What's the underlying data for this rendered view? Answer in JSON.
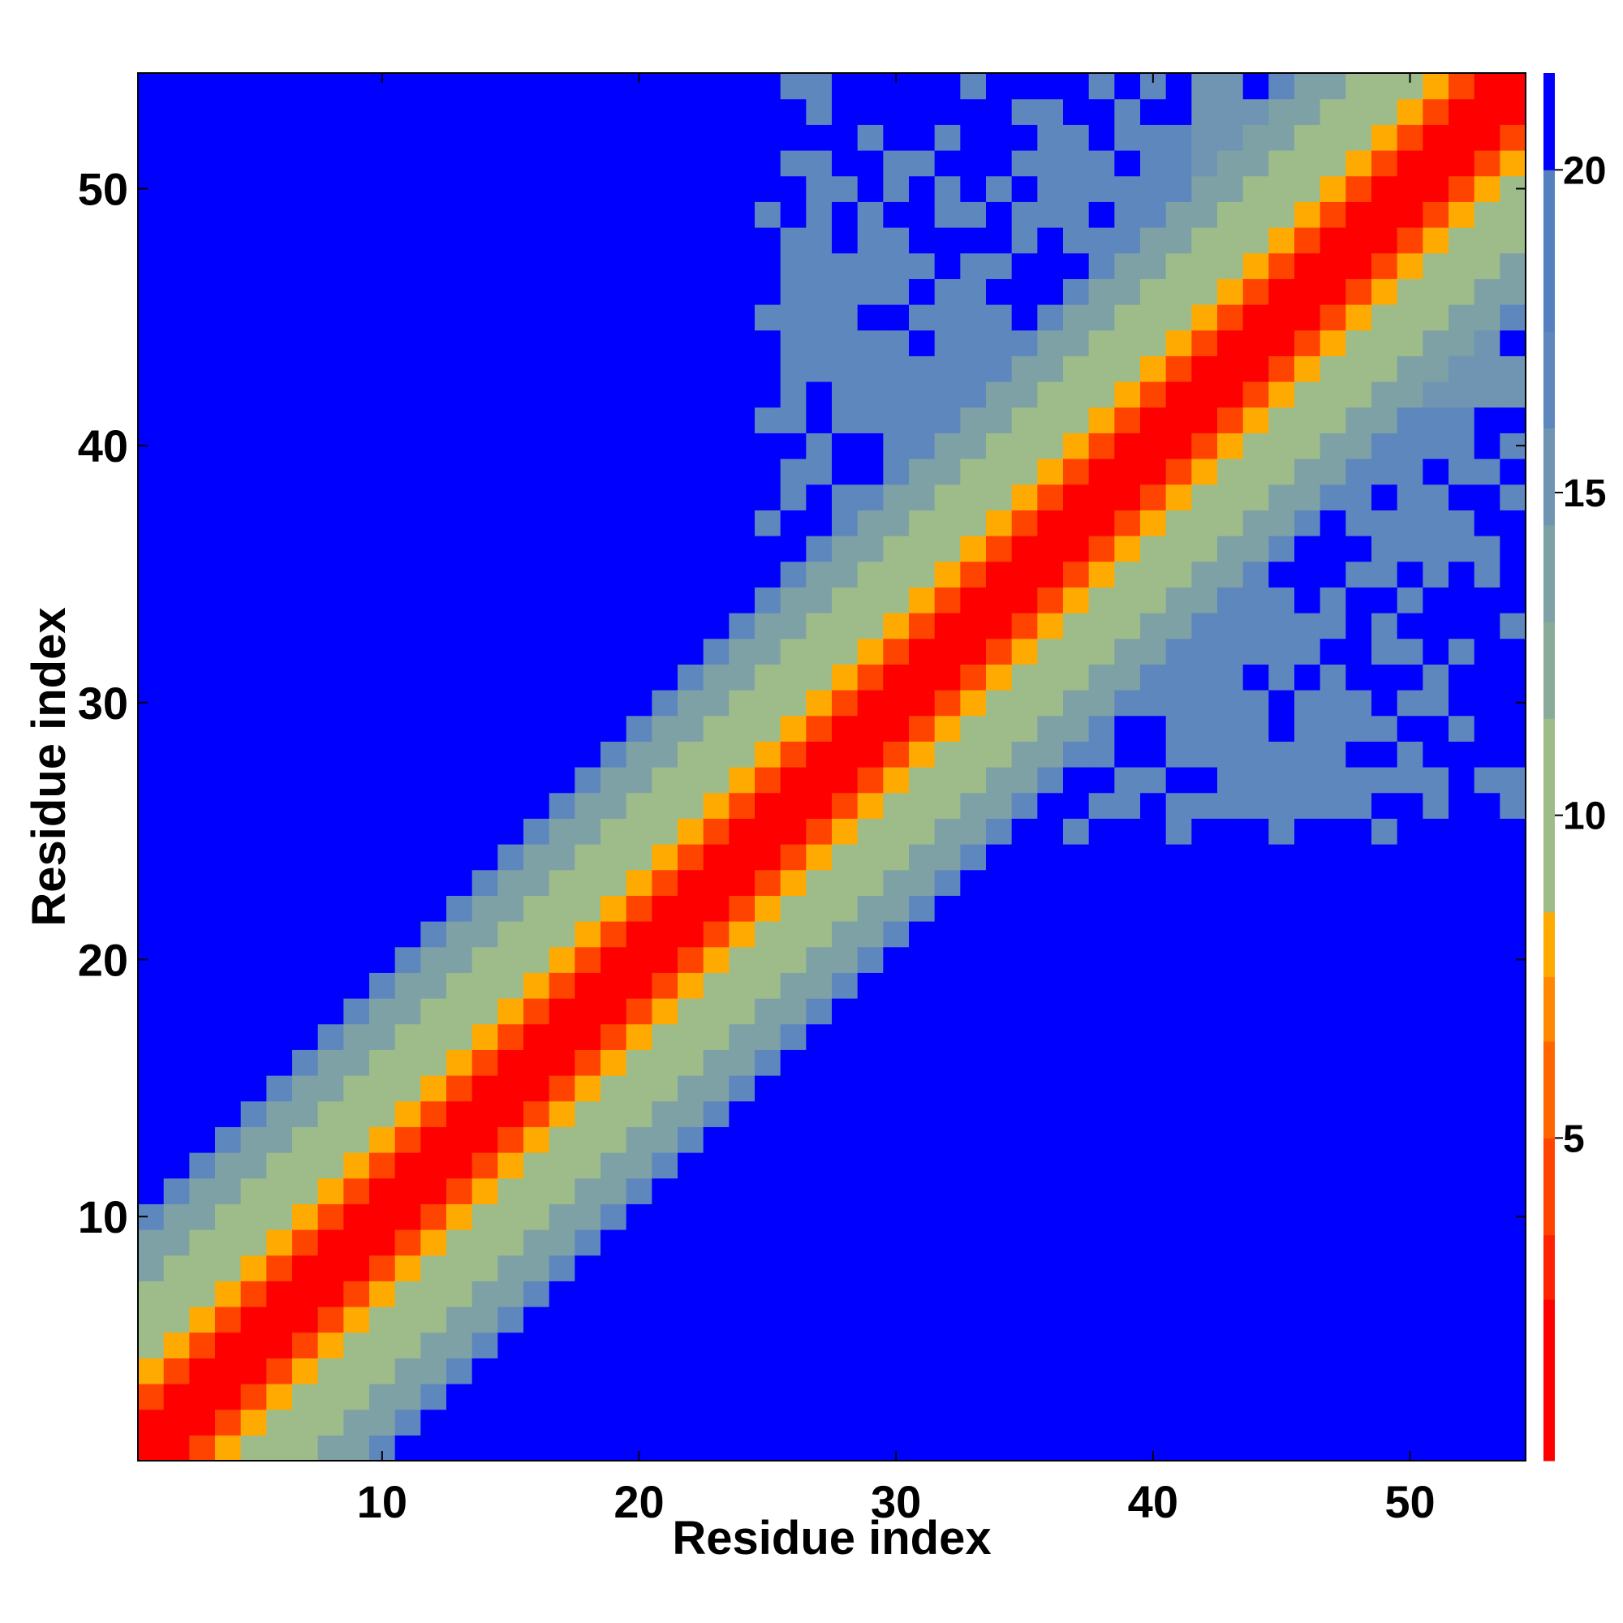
{
  "chart_data": {
    "type": "heatmap",
    "title": "",
    "xlabel": "Residue index",
    "ylabel": "Residue index",
    "n_residues": 54,
    "x_ticks": [
      10,
      20,
      30,
      40,
      50
    ],
    "y_ticks": [
      10,
      20,
      30,
      40,
      50
    ],
    "xlim": [
      1,
      54
    ],
    "ylim": [
      1,
      54
    ],
    "colorbar": {
      "range": [
        0,
        21.5
      ],
      "ticks": [
        5,
        10,
        15,
        20
      ],
      "levels": [
        {
          "min": 0,
          "max": 2.5,
          "color": "#ff0000"
        },
        {
          "min": 2.5,
          "max": 3.5,
          "color": "#ff2200"
        },
        {
          "min": 3.5,
          "max": 5,
          "color": "#ff4400"
        },
        {
          "min": 5,
          "max": 6.5,
          "color": "#ff6600"
        },
        {
          "min": 6.5,
          "max": 7.5,
          "color": "#ff8800"
        },
        {
          "min": 7.5,
          "max": 8.5,
          "color": "#ffaa00"
        },
        {
          "min": 8.5,
          "max": 11.5,
          "color": "#9ebc8a"
        },
        {
          "min": 11.5,
          "max": 13,
          "color": "#8aab9a"
        },
        {
          "min": 13,
          "max": 14.5,
          "color": "#7ea1a6"
        },
        {
          "min": 14.5,
          "max": 16,
          "color": "#6f95b2"
        },
        {
          "min": 16,
          "max": 17.5,
          "color": "#5e87bd"
        },
        {
          "min": 17.5,
          "max": 20,
          "color": "#5580c0"
        },
        {
          "min": 20,
          "max": 21.5,
          "color": "#0000ff"
        }
      ]
    },
    "matrix_rule": "symmetric distance map; value grows with |i-j|: diagonal red, near-diagonal orange, mid band sage-green, outer band slate-blue, far field blue; extra slate-blue contacts between residues ~25-47 and ~40-54",
    "contact_patches": [
      {
        "i": [
          26,
          31
        ],
        "j": [
          41,
          47
        ],
        "value": 17
      },
      {
        "i": [
          36,
          40
        ],
        "j": [
          44,
          52
        ],
        "value": 16
      },
      {
        "i": [
          42,
          46
        ],
        "j": [
          26,
          34
        ],
        "value": 17
      },
      {
        "i": [
          48,
          54
        ],
        "j": [
          42,
          50
        ],
        "value": 15
      }
    ]
  }
}
